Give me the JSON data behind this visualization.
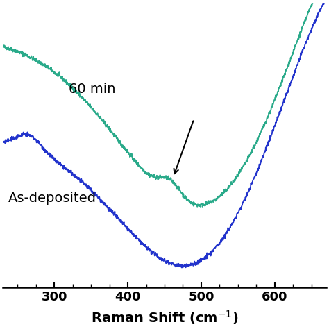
{
  "x_min": 230,
  "x_max": 670,
  "xticks": [
    300,
    400,
    500,
    600
  ],
  "teal_color": "#2aaa8a",
  "blue_color": "#2233cc",
  "label_60min": "60 min",
  "label_asdeposited": "As-deposited",
  "background": "#ffffff",
  "figsize": [
    4.74,
    4.74
  ],
  "dpi": 100
}
